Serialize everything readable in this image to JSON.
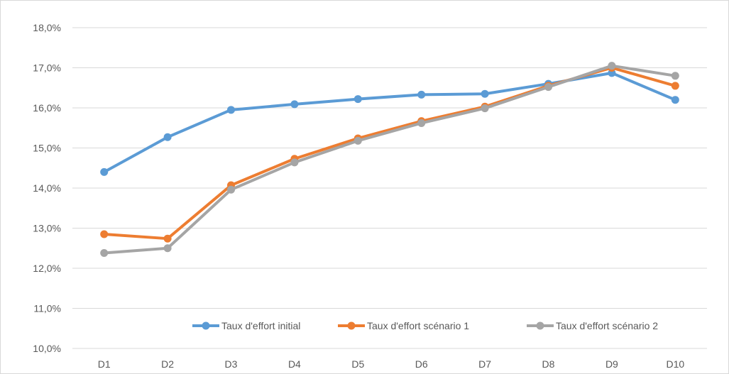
{
  "chart_data": {
    "type": "line",
    "title": "",
    "xlabel": "",
    "ylabel": "",
    "categories": [
      "D1",
      "D2",
      "D3",
      "D4",
      "D5",
      "D6",
      "D7",
      "D8",
      "D9",
      "D10"
    ],
    "ylim": [
      10.0,
      18.0
    ],
    "ytick_step": 1.0,
    "ytick_labels": [
      "10,0%",
      "11,0%",
      "12,0%",
      "13,0%",
      "14,0%",
      "15,0%",
      "16,0%",
      "17,0%",
      "18,0%"
    ],
    "grid": true,
    "legend_position": "bottom-inside",
    "series": [
      {
        "name": "Taux d'effort initial",
        "color": "#5B9BD5",
        "values": [
          14.4,
          15.27,
          15.95,
          16.09,
          16.22,
          16.33,
          16.35,
          16.6,
          16.87,
          16.2
        ]
      },
      {
        "name": "Taux d'effort scénario 1",
        "color": "#ED7D31",
        "values": [
          12.85,
          12.74,
          14.07,
          14.73,
          15.24,
          15.67,
          16.03,
          16.55,
          17.0,
          16.55
        ]
      },
      {
        "name": "Taux d'effort scénario 2",
        "color": "#A5A5A5",
        "values": [
          12.38,
          12.5,
          13.96,
          14.64,
          15.18,
          15.62,
          15.99,
          16.52,
          17.05,
          16.8
        ]
      }
    ]
  }
}
